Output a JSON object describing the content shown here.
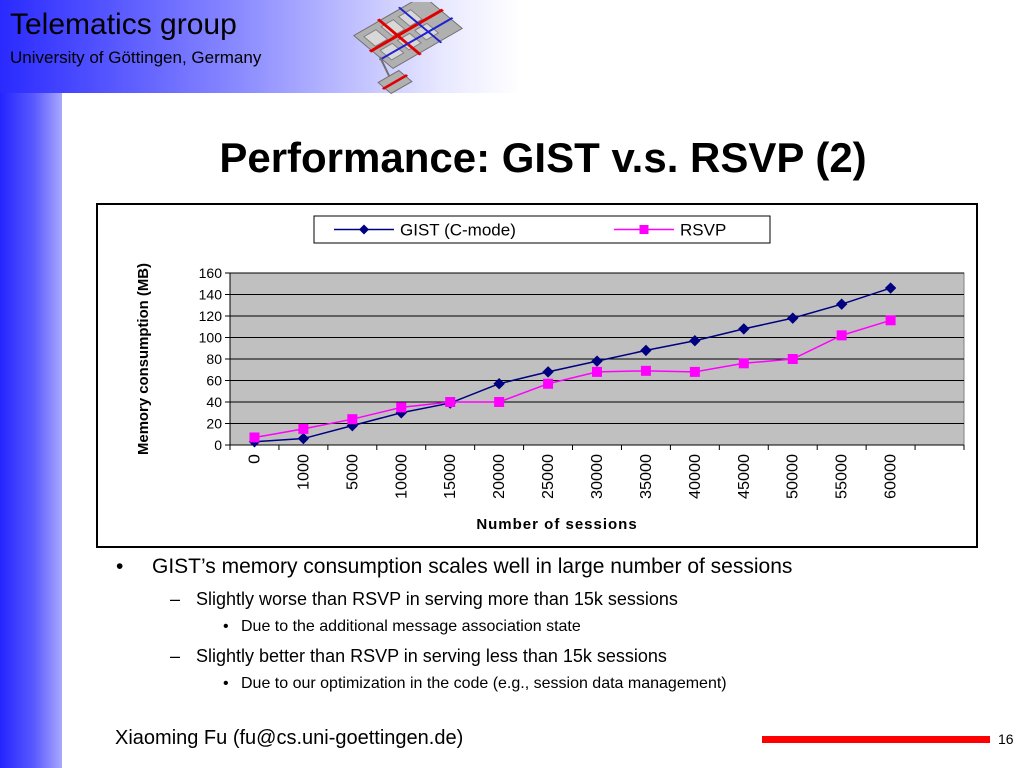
{
  "header": {
    "org_title": "Telematics group",
    "org_subtitle": "University of Göttingen, Germany"
  },
  "slide": {
    "title": "Performance: GIST v.s. RSVP (2)",
    "page_number": "16",
    "author": "Xiaoming Fu (fu@cs.uni-goettingen.de)"
  },
  "bullets": {
    "l1": "GIST’s memory consumption scales well in large number of sessions",
    "l2a": "Slightly worse than RSVP in serving more than 15k sessions",
    "l3a": "Due to the additional message association state",
    "l2b": "Slightly better than RSVP in serving less than 15k sessions",
    "l3b": "Due to our optimization in the code (e.g., session data management)",
    "marker_l1": "•",
    "marker_l2": "–",
    "marker_l3": "•"
  },
  "colors": {
    "gist": "#000080",
    "rsvp": "#ff00ff",
    "plot_bg": "#c0c0c0",
    "accent_red": "#ff0000"
  },
  "chart_data": {
    "type": "line",
    "categories": [
      "0",
      "1000",
      "5000",
      "10000",
      "15000",
      "20000",
      "25000",
      "30000",
      "35000",
      "40000",
      "45000",
      "50000",
      "55000",
      "60000"
    ],
    "series": [
      {
        "name": "GIST (C-mode)",
        "color": "#000080",
        "marker": "diamond",
        "values": [
          3,
          6,
          18,
          30,
          39,
          57,
          68,
          78,
          88,
          97,
          108,
          118,
          131,
          146
        ]
      },
      {
        "name": "RSVP",
        "color": "#ff00ff",
        "marker": "square",
        "values": [
          7,
          15,
          24,
          35,
          40,
          40,
          57,
          68,
          69,
          68,
          76,
          80,
          102,
          116
        ]
      }
    ],
    "xlabel": "Number of sessions",
    "ylabel": "Memory consumption (MB)",
    "ylim": [
      0,
      160
    ],
    "yticks": [
      "0",
      "20",
      "40",
      "60",
      "80",
      "100",
      "120",
      "140",
      "160"
    ],
    "grid": true,
    "legend": "top"
  }
}
